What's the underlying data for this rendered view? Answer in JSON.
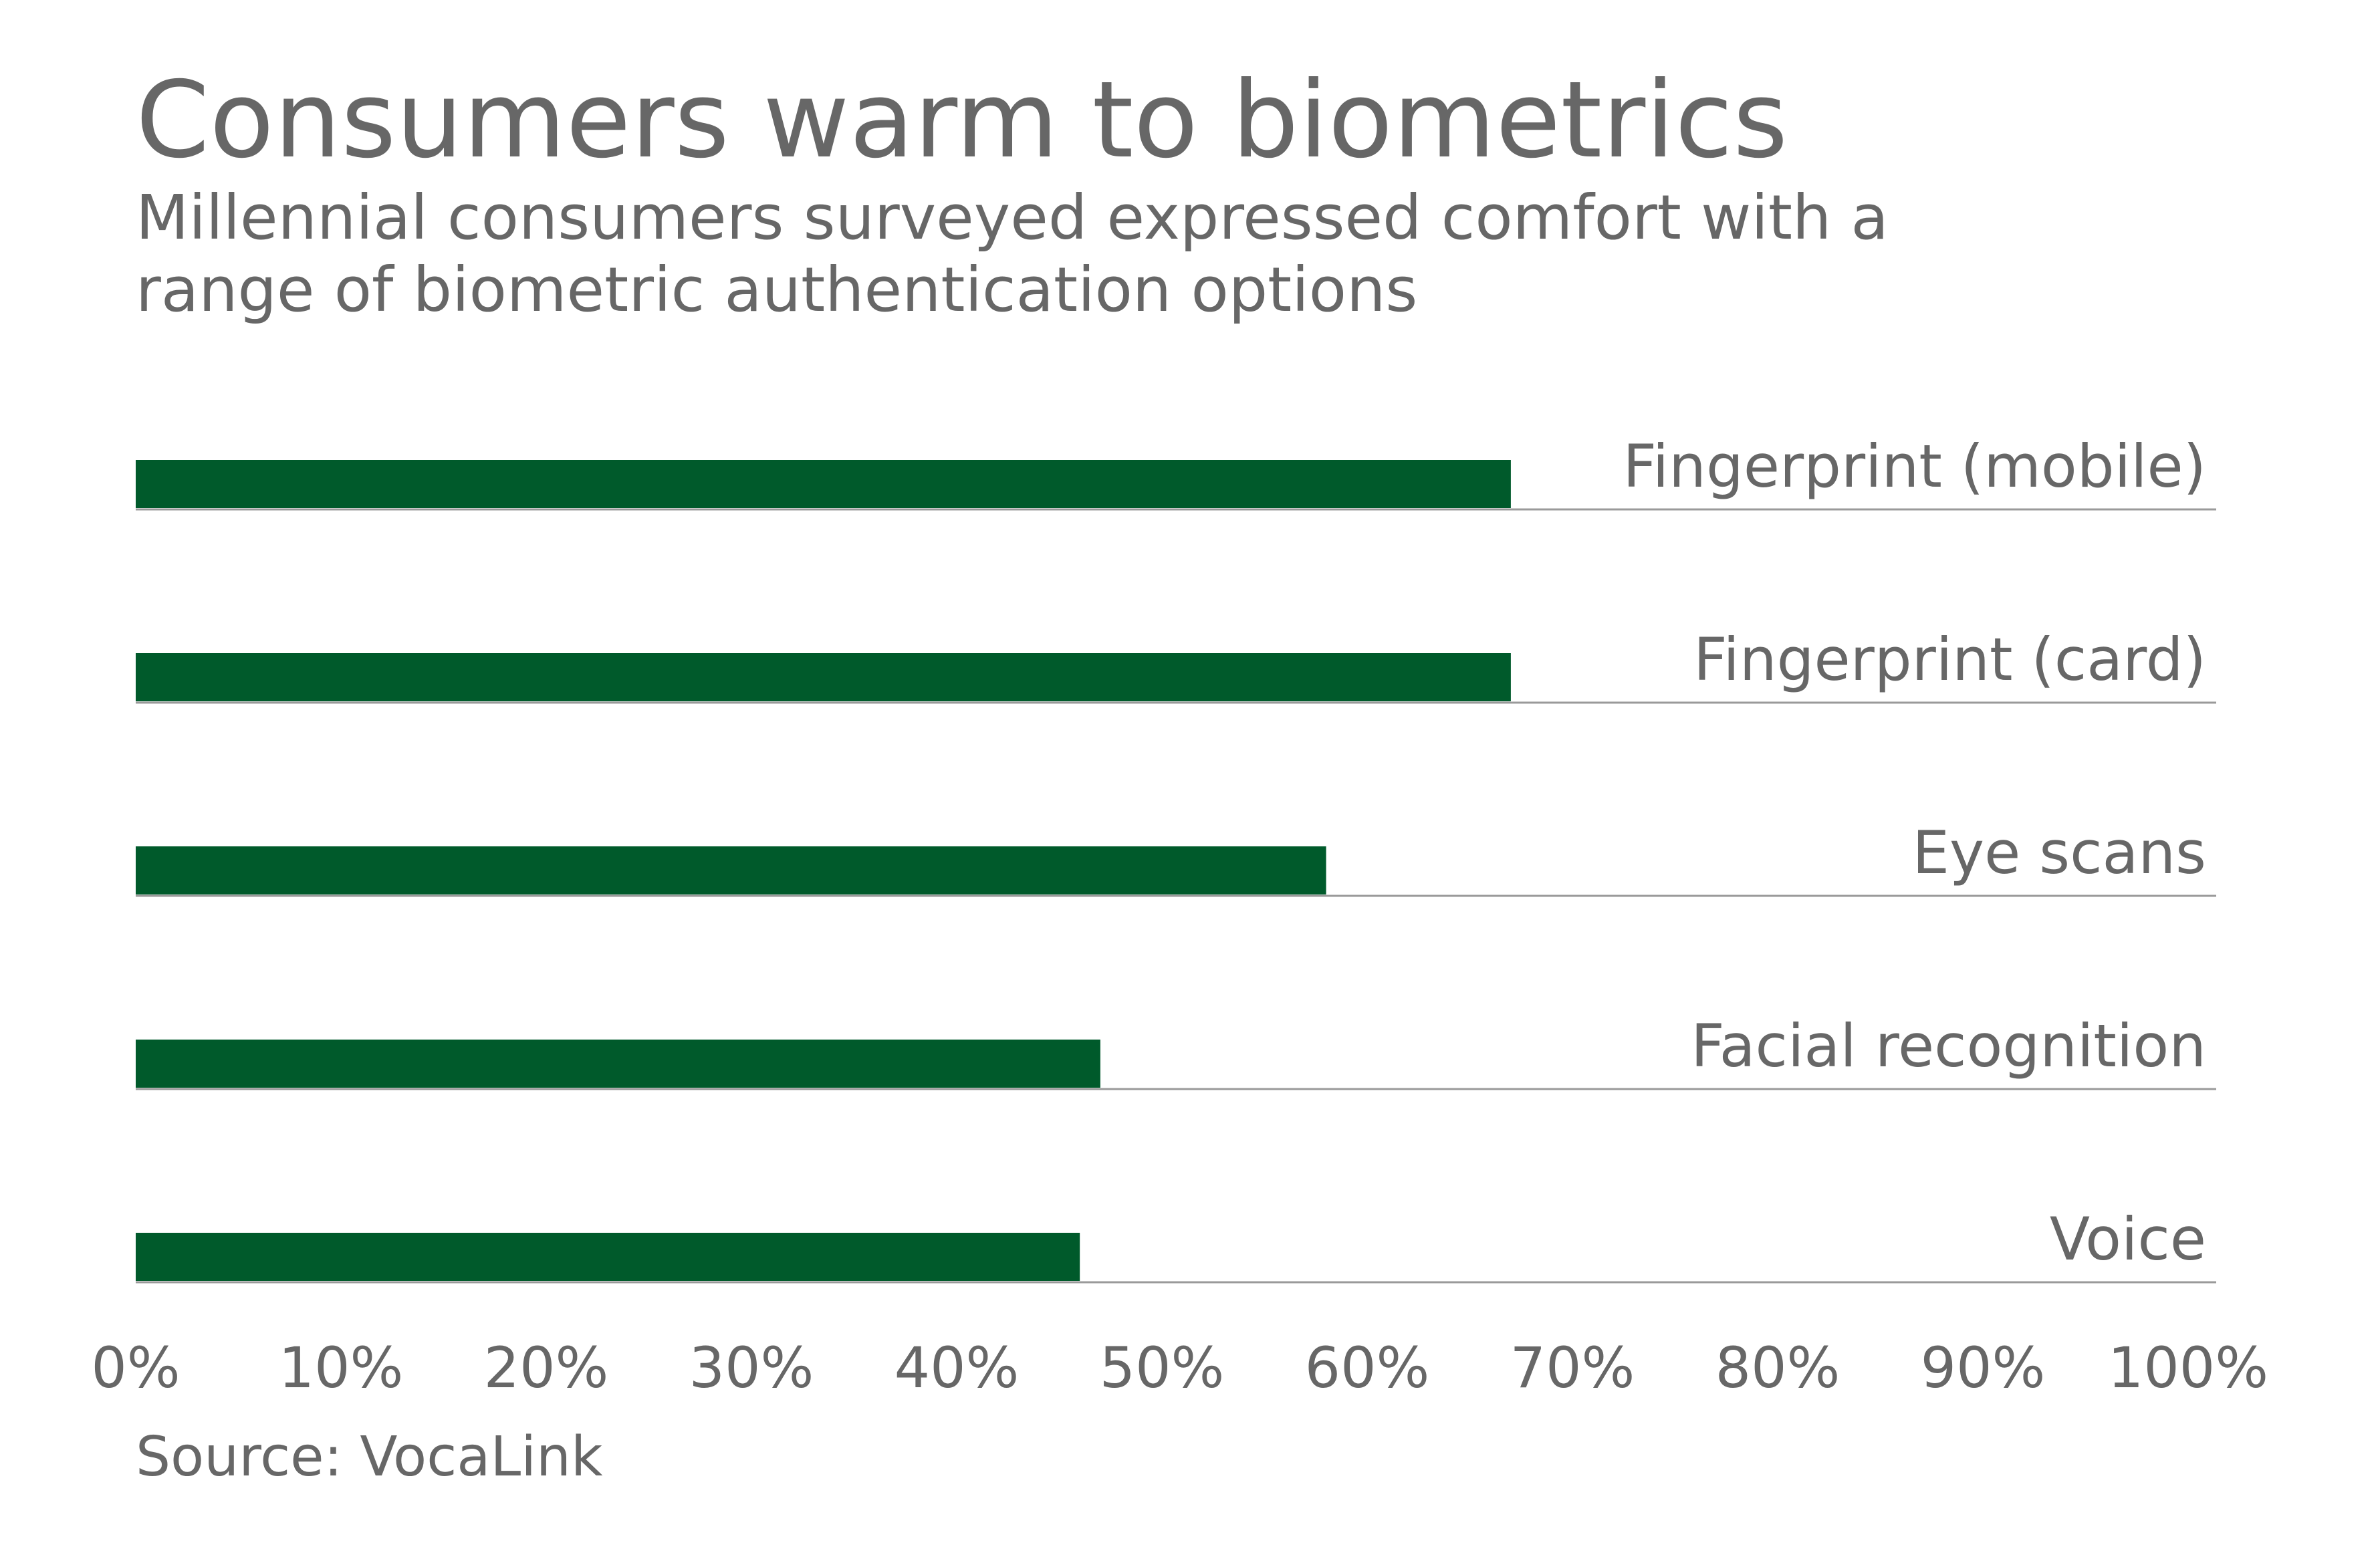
{
  "header": {
    "title": "Consumers warm to biometrics",
    "subtitle": "Millennial consumers surveyed expressed comfort with a\nrange of biometric authentication options"
  },
  "source": "Source: VocaLink",
  "colors": {
    "bar": "#005A2B",
    "text": "#676767",
    "baseline": "#9a9a9a"
  },
  "chart_data": {
    "type": "bar",
    "orientation": "horizontal",
    "categories": [
      "Fingerprint (mobile)",
      "Fingerprint (card)",
      "Eye scans",
      "Facial recognition",
      "Voice"
    ],
    "values": [
      67,
      67,
      58,
      47,
      46
    ],
    "unit": "%",
    "xlim": [
      0,
      100
    ],
    "x_ticks": [
      0,
      10,
      20,
      30,
      40,
      50,
      60,
      70,
      80,
      90,
      100
    ],
    "x_tick_labels": [
      "0%",
      "10%",
      "20%",
      "30%",
      "40%",
      "50%",
      "60%",
      "70%",
      "80%",
      "90%",
      "100%"
    ],
    "title": "Consumers warm to biometrics",
    "subtitle": "Millennial consumers surveyed expressed comfort with a range of biometric authentication options",
    "xlabel": "",
    "ylabel": "",
    "grid": false,
    "legend": "none",
    "category_label_position": "right-above-bar"
  }
}
